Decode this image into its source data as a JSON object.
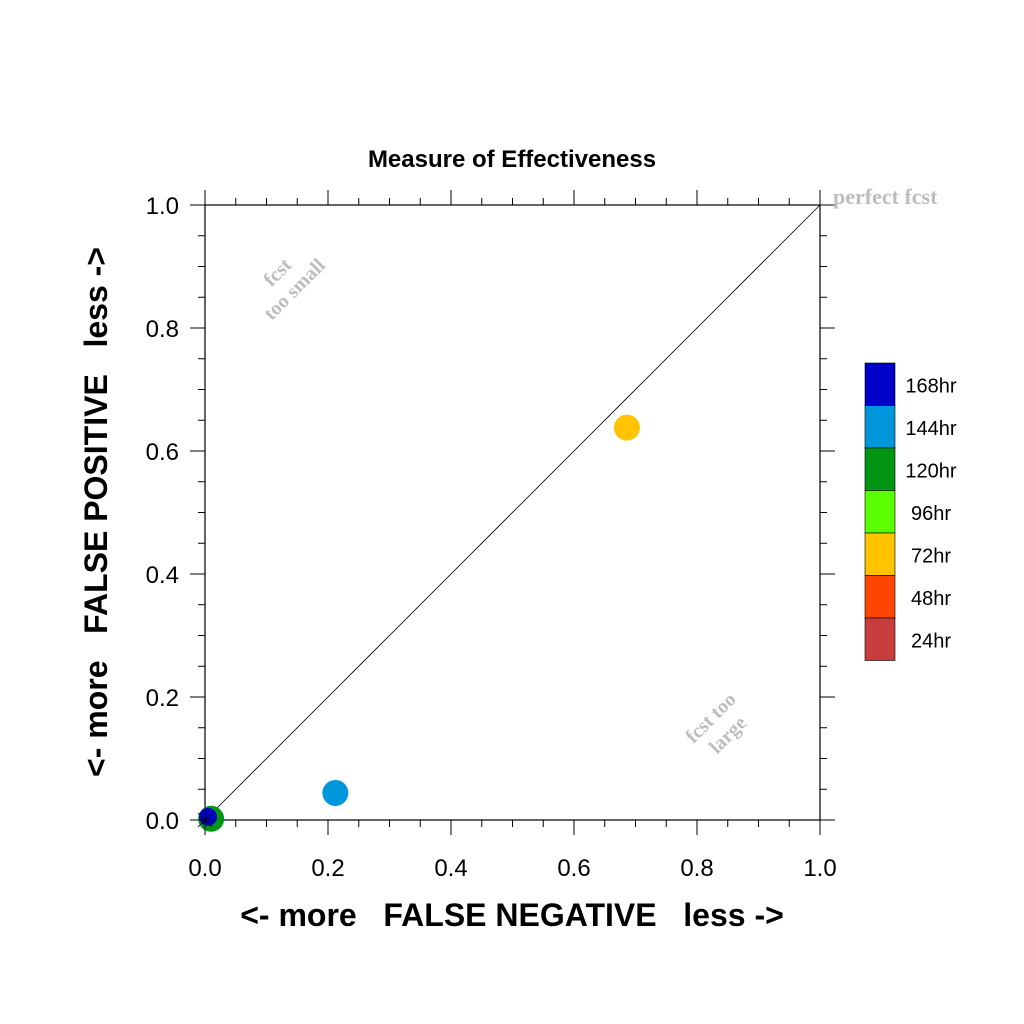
{
  "chart_data": {
    "type": "scatter",
    "title": "Measure of Effectiveness",
    "xlabel": "<- more   FALSE NEGATIVE   less ->",
    "ylabel": "<- more   FALSE POSITIVE   less ->",
    "xlim": [
      0.0,
      1.0
    ],
    "ylim": [
      0.0,
      1.0
    ],
    "xticks": [
      "0.0",
      "0.2",
      "0.4",
      "0.6",
      "0.8",
      "1.0"
    ],
    "yticks": [
      "0.0",
      "0.2",
      "0.4",
      "0.6",
      "0.8",
      "1.0"
    ],
    "grid": false,
    "reference_line": {
      "from": [
        0.0,
        0.0
      ],
      "to": [
        1.0,
        1.0
      ]
    },
    "annotations": {
      "perfect": "perfect fcst",
      "too_small_line1": "fcst",
      "too_small_line2": "too small",
      "too_large_line1": "fcst too",
      "too_large_line2": "large"
    },
    "legend_position": "right",
    "series": [
      {
        "name": "168hr",
        "color": "#0000c8",
        "points": [
          [
            0.005,
            0.005
          ]
        ]
      },
      {
        "name": "144hr",
        "color": "#0096dc",
        "points": [
          [
            0.212,
            0.044
          ]
        ]
      },
      {
        "name": "120hr",
        "color": "#009614",
        "points": [
          [
            0.01,
            0.002
          ]
        ]
      },
      {
        "name": "96hr",
        "color": "#5aff00",
        "points": []
      },
      {
        "name": "72hr",
        "color": "#ffc300",
        "points": [
          [
            0.686,
            0.638
          ]
        ]
      },
      {
        "name": "48hr",
        "color": "#ff4600",
        "points": []
      },
      {
        "name": "24hr",
        "color": "#c83c3c",
        "points": []
      }
    ],
    "marker_order": [
      "72hr",
      "144hr",
      "120hr",
      "168hr"
    ]
  }
}
